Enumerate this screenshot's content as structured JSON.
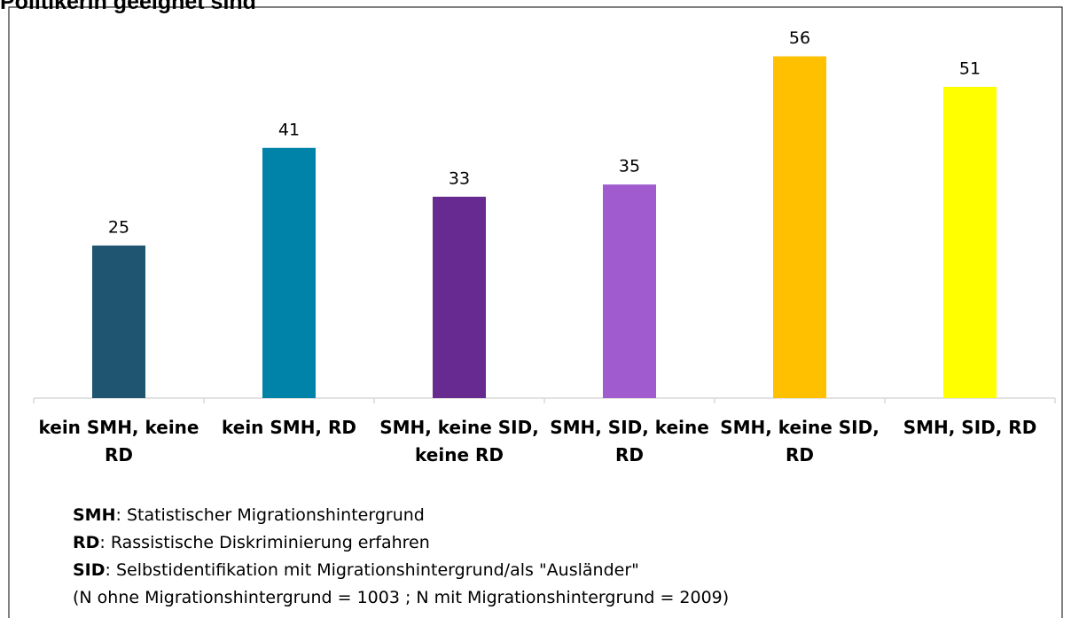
{
  "chart_data": {
    "type": "bar",
    "title": "Politikerin geeignet sind",
    "categories": [
      "kein SMH, keine RD",
      "kein SMH, RD",
      "SMH, keine SID, keine RD",
      "SMH, SID, keine RD",
      "SMH, keine SID, RD",
      "SMH, SID, RD"
    ],
    "values": [
      25,
      41,
      33,
      35,
      56,
      51
    ],
    "colors": [
      "#1f5570",
      "#0083a8",
      "#662a91",
      "#a05ccf",
      "#ffc000",
      "#ffff00"
    ],
    "ylim": [
      0,
      60
    ],
    "notes": [
      {
        "term": "SMH",
        "text": ": Statistischer Migrationshintergrund"
      },
      {
        "term": "RD",
        "text": ": Rassistische Diskriminierung erfahren"
      },
      {
        "term": "SID",
        "text": ": Selbstidentifikation mit Migrationshintergrund/als \"Ausländer\""
      }
    ],
    "footnote": "(N ohne Migrationshintergrund = 1003 ; N mit Migrationshintergrund = 2009)"
  }
}
